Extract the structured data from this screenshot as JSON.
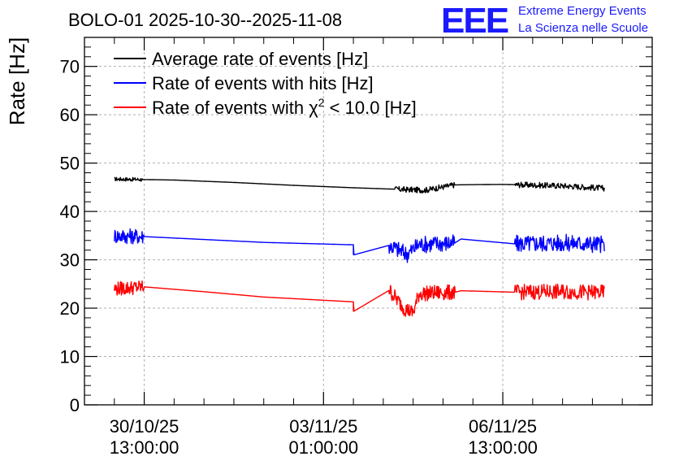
{
  "chart_data": {
    "type": "line",
    "title": "BOLO-01 2025-10-30--2025-11-08",
    "ylabel": "Rate [Hz]",
    "xlabel": "",
    "ylim": [
      0,
      76
    ],
    "xlim": [
      0,
      9.5
    ],
    "yticks": [
      0,
      10,
      20,
      30,
      40,
      50,
      60,
      70
    ],
    "xticks": [
      {
        "x": 1.0,
        "label_date": "30/10/25",
        "label_time": "13:00:00"
      },
      {
        "x": 4.0,
        "label_date": "03/11/25",
        "label_time": "01:00:00"
      },
      {
        "x": 7.0,
        "label_date": "06/11/25",
        "label_time": "13:00:00"
      }
    ],
    "grid": true,
    "legend_position": "top-left",
    "series": [
      {
        "name": "Average rate of events [Hz]",
        "name_prefix": "Average rate of events [Hz]",
        "name_sup": "",
        "name_suffix": "",
        "color": "#000000",
        "points": [
          [
            0.5,
            46.7
          ],
          [
            1.5,
            46.5
          ],
          [
            2.5,
            46.0
          ],
          [
            3.5,
            45.4
          ],
          [
            4.5,
            44.9
          ],
          [
            5.2,
            44.6
          ],
          [
            5.7,
            44.4
          ],
          [
            6.2,
            45.5
          ],
          [
            7.0,
            45.6
          ],
          [
            8.0,
            45.3
          ],
          [
            8.7,
            44.8
          ]
        ],
        "noisy_segments": [
          {
            "x0": 0.5,
            "x1": 0.97,
            "amp": 0.4
          },
          {
            "x0": 5.2,
            "x1": 6.2,
            "amp": 0.6
          },
          {
            "x0": 7.2,
            "x1": 8.7,
            "amp": 0.6
          }
        ]
      },
      {
        "name": "Rate of events with hits [Hz]",
        "name_prefix": "Rate of events with hits [Hz]",
        "name_sup": "",
        "name_suffix": "",
        "color": "#0000ff",
        "points": [
          [
            0.5,
            35.0
          ],
          [
            1.0,
            34.8
          ],
          [
            2.0,
            34.2
          ],
          [
            3.0,
            33.6
          ],
          [
            4.5,
            33.1
          ],
          [
            4.5,
            31.0
          ],
          [
            5.1,
            33.0
          ],
          [
            5.4,
            31.2
          ],
          [
            5.6,
            33.2
          ],
          [
            6.2,
            33.5
          ],
          [
            6.3,
            34.3
          ],
          [
            7.2,
            33.3
          ],
          [
            8.0,
            33.5
          ],
          [
            8.7,
            33.2
          ]
        ],
        "noisy_segments": [
          {
            "x0": 0.5,
            "x1": 1.0,
            "amp": 1.6
          },
          {
            "x0": 5.1,
            "x1": 6.2,
            "amp": 1.8
          },
          {
            "x0": 7.2,
            "x1": 8.7,
            "amp": 1.8
          }
        ]
      },
      {
        "name": "Rate of events with χ² < 10.0 [Hz]",
        "name_prefix": "Rate of events with χ",
        "name_sup": "2",
        "name_suffix": " < 10.0 [Hz]",
        "color": "#ff0000",
        "points": [
          [
            0.5,
            24.0
          ],
          [
            1.0,
            24.4
          ],
          [
            2.0,
            23.4
          ],
          [
            3.0,
            22.3
          ],
          [
            4.5,
            21.3
          ],
          [
            4.5,
            19.3
          ],
          [
            5.1,
            23.7
          ],
          [
            5.35,
            20.0
          ],
          [
            5.5,
            19.0
          ],
          [
            5.6,
            23.0
          ],
          [
            6.2,
            23.3
          ],
          [
            6.3,
            23.6
          ],
          [
            7.2,
            23.3
          ],
          [
            8.0,
            23.4
          ],
          [
            8.7,
            23.2
          ]
        ],
        "noisy_segments": [
          {
            "x0": 0.5,
            "x1": 1.0,
            "amp": 1.5
          },
          {
            "x0": 5.1,
            "x1": 6.2,
            "amp": 1.6
          },
          {
            "x0": 7.2,
            "x1": 8.7,
            "amp": 1.6
          }
        ]
      }
    ]
  },
  "logo": {
    "mark": "EEE",
    "line1": "Extreme Energy Events",
    "line2": "La Scienza nelle Scuole",
    "color": "#1a1aff"
  }
}
